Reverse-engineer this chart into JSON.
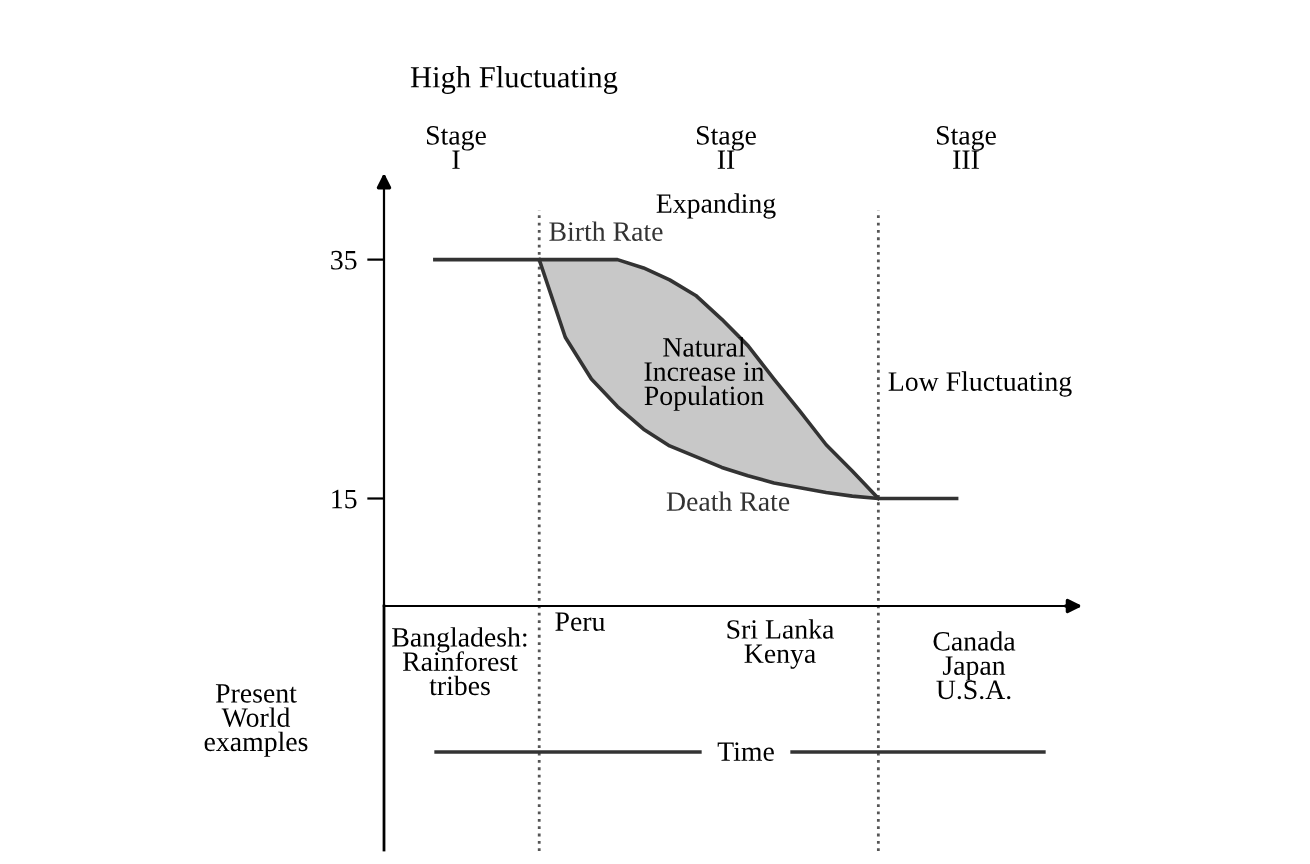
{
  "chart_data": {
    "type": "line",
    "title": "High Fluctuating",
    "xlabel": "Time",
    "categories": [
      null,
      null,
      null,
      null,
      null,
      null,
      null,
      null,
      null,
      null,
      null,
      null,
      null,
      null,
      null,
      null,
      null,
      null,
      null,
      null,
      null
    ],
    "series": [
      {
        "name": "Birth Rate",
        "color": "#333333",
        "values": [
          35,
          35,
          35,
          35,
          35,
          35,
          35,
          35,
          34.3,
          33.3,
          32,
          30,
          27.8,
          25,
          22.3,
          19.5,
          17.3,
          15,
          null,
          null,
          null
        ]
      },
      {
        "name": "Death Rate",
        "color": "#333333",
        "values": [
          null,
          null,
          null,
          null,
          35,
          28.5,
          25,
          22.7,
          20.8,
          19.4,
          18.5,
          17.6,
          16.9,
          16.3,
          15.9,
          15.5,
          15.2,
          15,
          15,
          15,
          15
        ]
      }
    ],
    "ylim": [
      6,
      42
    ],
    "yticks": [
      15,
      35
    ],
    "grid": false,
    "legend": false,
    "annotations": [
      "Stage\nI",
      "Stage\nII",
      "Stage\nIII",
      "Expanding",
      "Natural\nIncrease in\nPopulation",
      "Low Fluctuating",
      "Bangladesh:\nRainforest\ntribes",
      "Peru",
      "Sri Lanka\nKenya",
      "Canada\nJapan\nU.S.A.",
      "Present\nWorld\nexamples"
    ]
  }
}
